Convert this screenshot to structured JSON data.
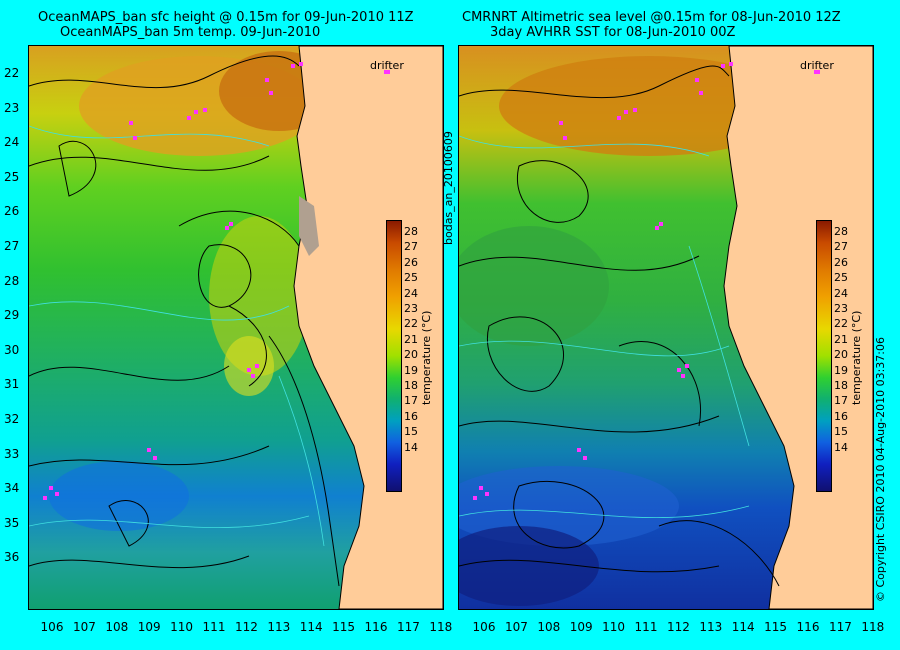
{
  "left_panel": {
    "title_line1": "OceanMAPS_ban sfc height @ 0.15m for 09-Jun-2010 11Z",
    "title_line2": "OceanMAPS_ban 5m temp. 09-Jun-2010",
    "drifter_label": "drifter"
  },
  "right_panel": {
    "title_line1": "CMRNRT Altimetric sea level  @0.15m  for 08-Jun-2010 12Z",
    "title_line2": "3day AVHRR SST for 08-Jun-2010 00Z",
    "drifter_label": "drifter"
  },
  "latitudes": [
    "22",
    "23",
    "24",
    "25",
    "26",
    "27",
    "28",
    "29",
    "30",
    "31",
    "32",
    "33",
    "34",
    "35",
    "36"
  ],
  "longitudes": [
    "106",
    "107",
    "108",
    "109",
    "110",
    "111",
    "112",
    "113",
    "114",
    "115",
    "116",
    "117",
    "118"
  ],
  "colorbar": {
    "label": "temperature (°C)",
    "ticks": [
      "28",
      "27",
      "26",
      "25",
      "24",
      "23",
      "22",
      "21",
      "20",
      "19",
      "18",
      "17",
      "16",
      "15",
      "14"
    ]
  },
  "side_text": {
    "run_id": "bodas_an_20100609",
    "credit": "© Copyright CSIRO 2010   04-Aug-2010 03:37:06"
  },
  "colors": {
    "background": "#00ffff",
    "land": "#ffcc99",
    "drifter_marker": "#ff33ff"
  }
}
